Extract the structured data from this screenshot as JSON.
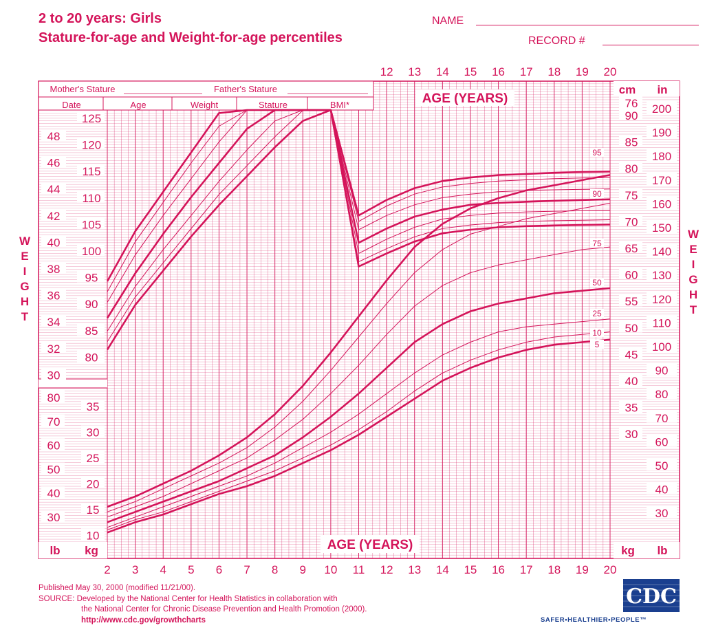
{
  "title_line1": "2 to 20 years: Girls",
  "title_line2": "Stature-for-age and Weight-for-age percentiles",
  "form": {
    "name_label": "NAME",
    "record_label": "RECORD #",
    "mothers_stature": "Mother's Stature",
    "fathers_stature": "Father's Stature",
    "columns": [
      "Date",
      "Age",
      "Weight",
      "Stature",
      "BMI*"
    ]
  },
  "chart_data": [
    {
      "type": "line",
      "title": "Stature-for-age",
      "xlabel": "AGE (YEARS)",
      "ylabel": "cm / in",
      "x": [
        2,
        3,
        4,
        5,
        6,
        7,
        8,
        9,
        10,
        11,
        12,
        13,
        14,
        15,
        16,
        17,
        18,
        19,
        20
      ],
      "xlim": [
        2,
        20
      ],
      "ylim_cm": [
        75,
        200
      ],
      "ylim_in": [
        30,
        78
      ],
      "series": [
        {
          "name": "95",
          "values_cm": [
            94,
            103.5,
            111,
            118.5,
            126,
            132.5,
            138.5,
            144.5,
            150.5,
            157,
            163.5,
            168.5,
            171.5,
            173,
            174,
            174.5,
            175,
            175.3,
            175.5
          ]
        },
        {
          "name": "90",
          "values_cm": [
            92,
            101.5,
            109,
            116.5,
            123.5,
            130,
            136,
            142,
            148,
            154.5,
            161,
            166,
            169,
            170.5,
            171.5,
            172,
            172.5,
            172.8,
            173
          ]
        },
        {
          "name": "75",
          "values_cm": [
            90,
            99,
            106.5,
            113.5,
            120.5,
            127,
            133,
            139,
            144.5,
            151,
            157,
            161.5,
            164.5,
            166,
            167,
            167.5,
            167.8,
            168,
            168.2
          ]
        },
        {
          "name": "50",
          "values_cm": [
            87,
            95.5,
            103,
            110,
            116.5,
            123,
            128.5,
            134,
            139.5,
            145.5,
            151.5,
            156.5,
            159.5,
            161.5,
            162.3,
            162.8,
            163.2,
            163.5,
            163.8
          ]
        },
        {
          "name": "25",
          "values_cm": [
            84.5,
            93,
            100,
            106.5,
            113,
            119,
            124.5,
            130,
            135.5,
            141,
            147,
            152,
            155.5,
            157,
            158,
            158.5,
            158.8,
            159,
            159.2
          ]
        },
        {
          "name": "10",
          "values_cm": [
            82.5,
            91,
            97.5,
            104,
            110.5,
            116,
            121.5,
            126.5,
            132,
            137.5,
            143,
            148,
            151.5,
            153,
            154,
            154.5,
            154.8,
            155,
            155.2
          ]
        },
        {
          "name": "5",
          "values_cm": [
            81,
            89.5,
            96,
            102.5,
            108.5,
            114,
            119.5,
            124.5,
            130,
            135.5,
            141,
            146,
            149.5,
            151,
            152,
            152.5,
            152.8,
            153,
            153.2
          ]
        }
      ],
      "percentile_labels": [
        "95",
        "90",
        "75",
        "50",
        "25",
        "10",
        "5"
      ]
    },
    {
      "type": "line",
      "title": "Weight-for-age",
      "xlabel": "AGE (YEARS)",
      "ylabel": "kg / lb",
      "x": [
        2,
        3,
        4,
        5,
        6,
        7,
        8,
        9,
        10,
        11,
        12,
        13,
        14,
        15,
        16,
        17,
        18,
        19,
        20
      ],
      "xlim": [
        2,
        20
      ],
      "ylim_kg": [
        8,
        105
      ],
      "ylim_lb": [
        20,
        230
      ],
      "series": [
        {
          "name": "95",
          "values_kg": [
            15.5,
            17.5,
            20,
            22.5,
            25.5,
            29,
            33.5,
            39,
            45.5,
            52.5,
            59.5,
            66,
            70.5,
            73.5,
            75.5,
            77,
            78,
            79,
            80
          ]
        },
        {
          "name": "90",
          "values_kg": [
            14.5,
            16.5,
            19,
            21.5,
            24,
            27,
            31,
            36,
            42,
            48.5,
            55,
            61,
            65.5,
            68.5,
            70,
            71.5,
            72.5,
            73.5,
            74.5
          ]
        },
        {
          "name": "75",
          "values_kg": [
            13.5,
            15.5,
            17.5,
            20,
            22.5,
            25,
            28.5,
            32.5,
            37.5,
            43,
            49,
            54.5,
            58.5,
            61,
            62.5,
            63.5,
            64.5,
            65.5,
            66
          ]
        },
        {
          "name": "50",
          "values_kg": [
            12.5,
            14.5,
            16.5,
            18.5,
            20.5,
            23,
            25.5,
            29,
            33,
            37.5,
            42.5,
            47.5,
            51,
            53.5,
            55,
            56,
            57,
            57.5,
            58
          ]
        },
        {
          "name": "25",
          "values_kg": [
            11.5,
            13.5,
            15.5,
            17.5,
            19.5,
            21.5,
            24,
            27,
            30,
            33.5,
            37.5,
            41.5,
            45,
            47.5,
            49.5,
            50.5,
            51,
            51.5,
            52
          ]
        },
        {
          "name": "10",
          "values_kg": [
            11,
            13,
            14.5,
            16.5,
            18.5,
            20.5,
            22.5,
            25,
            27.5,
            30.5,
            34,
            38,
            41.5,
            44,
            46,
            47.5,
            48.5,
            49,
            49.5
          ]
        },
        {
          "name": "5",
          "values_kg": [
            10.5,
            12.5,
            14,
            16,
            18,
            19.5,
            21.5,
            24,
            26.5,
            29.5,
            33,
            36.5,
            40,
            42.5,
            44.5,
            46,
            47,
            47.5,
            48
          ]
        }
      ]
    }
  ],
  "axis_labels": {
    "age_years": "AGE (YEARS)",
    "cm": "cm",
    "in": "in",
    "kg": "kg",
    "lb": "lb",
    "weight_vertical": "WEIGHT"
  },
  "ticks": {
    "age_bottom": [
      "2",
      "3",
      "4",
      "5",
      "6",
      "7",
      "8",
      "9",
      "10",
      "11",
      "12",
      "13",
      "14",
      "15",
      "16",
      "17",
      "18",
      "19",
      "20"
    ],
    "age_top": [
      "12",
      "13",
      "14",
      "15",
      "16",
      "17",
      "18",
      "19",
      "20"
    ],
    "left_stature_cm": [
      "125",
      "120",
      "115",
      "110",
      "105",
      "100",
      "95",
      "90",
      "85",
      "80"
    ],
    "left_stature_in": [
      "48",
      "46",
      "44",
      "42",
      "40",
      "38",
      "36",
      "34",
      "32",
      "30"
    ],
    "right_stature_in": [
      "76",
      "90",
      "85",
      "80",
      "75",
      "70",
      "65",
      "60",
      "55",
      "50",
      "45",
      "40",
      "35",
      "30"
    ],
    "right_cm": [
      "200",
      "190",
      "180",
      "170",
      "160",
      "150",
      "140",
      "130",
      "120",
      "110",
      "100",
      "90",
      "80",
      "70",
      "60",
      "50",
      "40",
      "30"
    ],
    "weight_kg_left": [
      "35",
      "30",
      "25",
      "20",
      "15",
      "10"
    ],
    "weight_lb_left": [
      "80",
      "70",
      "60",
      "50",
      "40",
      "30"
    ]
  },
  "footer": {
    "published": "Published May 30, 2000 (modified 11/21/00).",
    "source_line1": "SOURCE: Developed by the National Center for Health Statistics in collaboration with",
    "source_line2": "the National Center for Chronic Disease Prevention and Health Promotion (2000).",
    "url": "http://www.cdc.gov/growthcharts",
    "tagline": "SAFER•HEALTHIER•PEOPLE™",
    "logo_text": "CDC"
  },
  "colors": {
    "accent": "#d4145a",
    "grid": "#d4145a",
    "logo": "#1a3f8f"
  }
}
